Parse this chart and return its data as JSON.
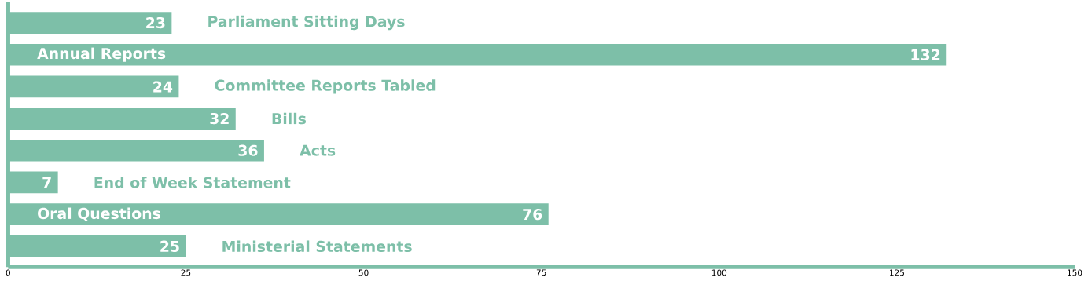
{
  "chart_data": {
    "type": "bar",
    "orientation": "horizontal",
    "categories": [
      "Parliament Sitting Days",
      "Annual Reports",
      "Committee Reports Tabled",
      "Bills",
      "Acts",
      "End of Week Statement",
      "Oral Questions",
      "Ministerial Statements"
    ],
    "values": [
      23,
      132,
      24,
      32,
      36,
      7,
      76,
      25
    ],
    "color": "#7dbfa8",
    "xlim": [
      0,
      150
    ],
    "xticks": [
      0,
      25,
      50,
      75,
      100,
      125,
      150
    ],
    "data_labels": true
  }
}
